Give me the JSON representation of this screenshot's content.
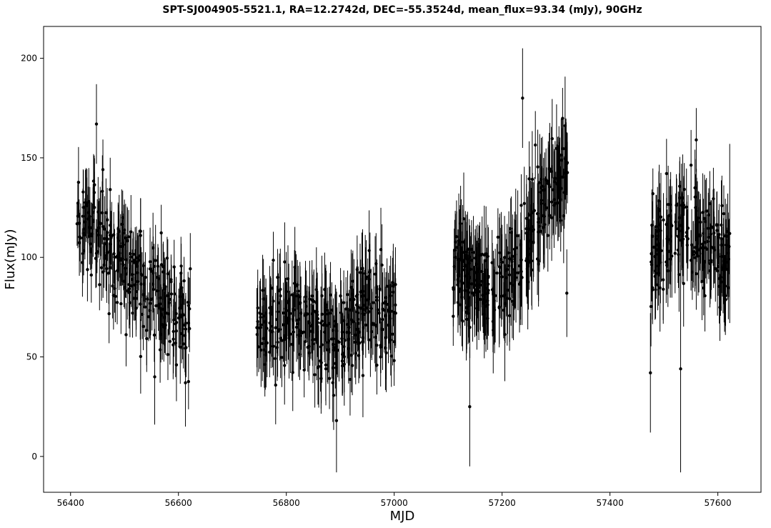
{
  "chart_data": {
    "type": "scatter",
    "title": "SPT-SJ004905-5521.1, RA=12.2742d, DEC=-55.3524d, mean_flux=93.34 (mJy), 90GHz",
    "xlabel": "MJD",
    "ylabel": "Flux(mJy)",
    "xlim": [
      56350,
      57680
    ],
    "ylim": [
      -18,
      216
    ],
    "xticks": [
      56400,
      56600,
      56800,
      57000,
      57200,
      57400,
      57600
    ],
    "yticks": [
      0,
      50,
      100,
      150,
      200
    ],
    "grid": false,
    "legend": "none",
    "marker": "filled-circle with vertical error bars",
    "color": "#000000",
    "observing_seasons": [
      {
        "mjd_range": [
          56412,
          56622
        ],
        "mean_flux_trend": [
          120,
          118,
          113,
          108,
          102,
          95,
          89,
          84,
          79,
          74,
          70,
          68
        ],
        "typical_error": 15
      },
      {
        "mjd_range": [
          56745,
          57003
        ],
        "mean_flux_trend": [
          64,
          65,
          67,
          68,
          66,
          62,
          59,
          63,
          70,
          75,
          72,
          68
        ],
        "typical_error": 17
      },
      {
        "mjd_range": [
          57108,
          57322
        ],
        "mean_flux_trend": [
          98,
          93,
          89,
          84,
          82,
          85,
          93,
          108,
          124,
          133,
          137,
          140
        ],
        "typical_error": 20
      },
      {
        "mjd_range": [
          57475,
          57622
        ],
        "mean_flux_trend": [
          101,
          106,
          110,
          113,
          115,
          116,
          115,
          111,
          106,
          101,
          96,
          94
        ],
        "typical_error": 18
      }
    ],
    "notable_points": [
      {
        "x": 56448,
        "y": 167,
        "err": 20
      },
      {
        "x": 56556,
        "y": 40,
        "err": 24
      },
      {
        "x": 56613,
        "y": 37,
        "err": 22
      },
      {
        "x": 56893,
        "y": 18,
        "err": 26
      },
      {
        "x": 57140,
        "y": 25,
        "err": 30
      },
      {
        "x": 57238,
        "y": 180,
        "err": 25
      },
      {
        "x": 57320,
        "y": 82,
        "err": 22
      },
      {
        "x": 57475,
        "y": 42,
        "err": 30
      },
      {
        "x": 57531,
        "y": 44,
        "err": 52
      },
      {
        "x": 57560,
        "y": 159,
        "err": 16
      },
      {
        "x": 57622,
        "y": 112,
        "err": 45
      }
    ]
  }
}
